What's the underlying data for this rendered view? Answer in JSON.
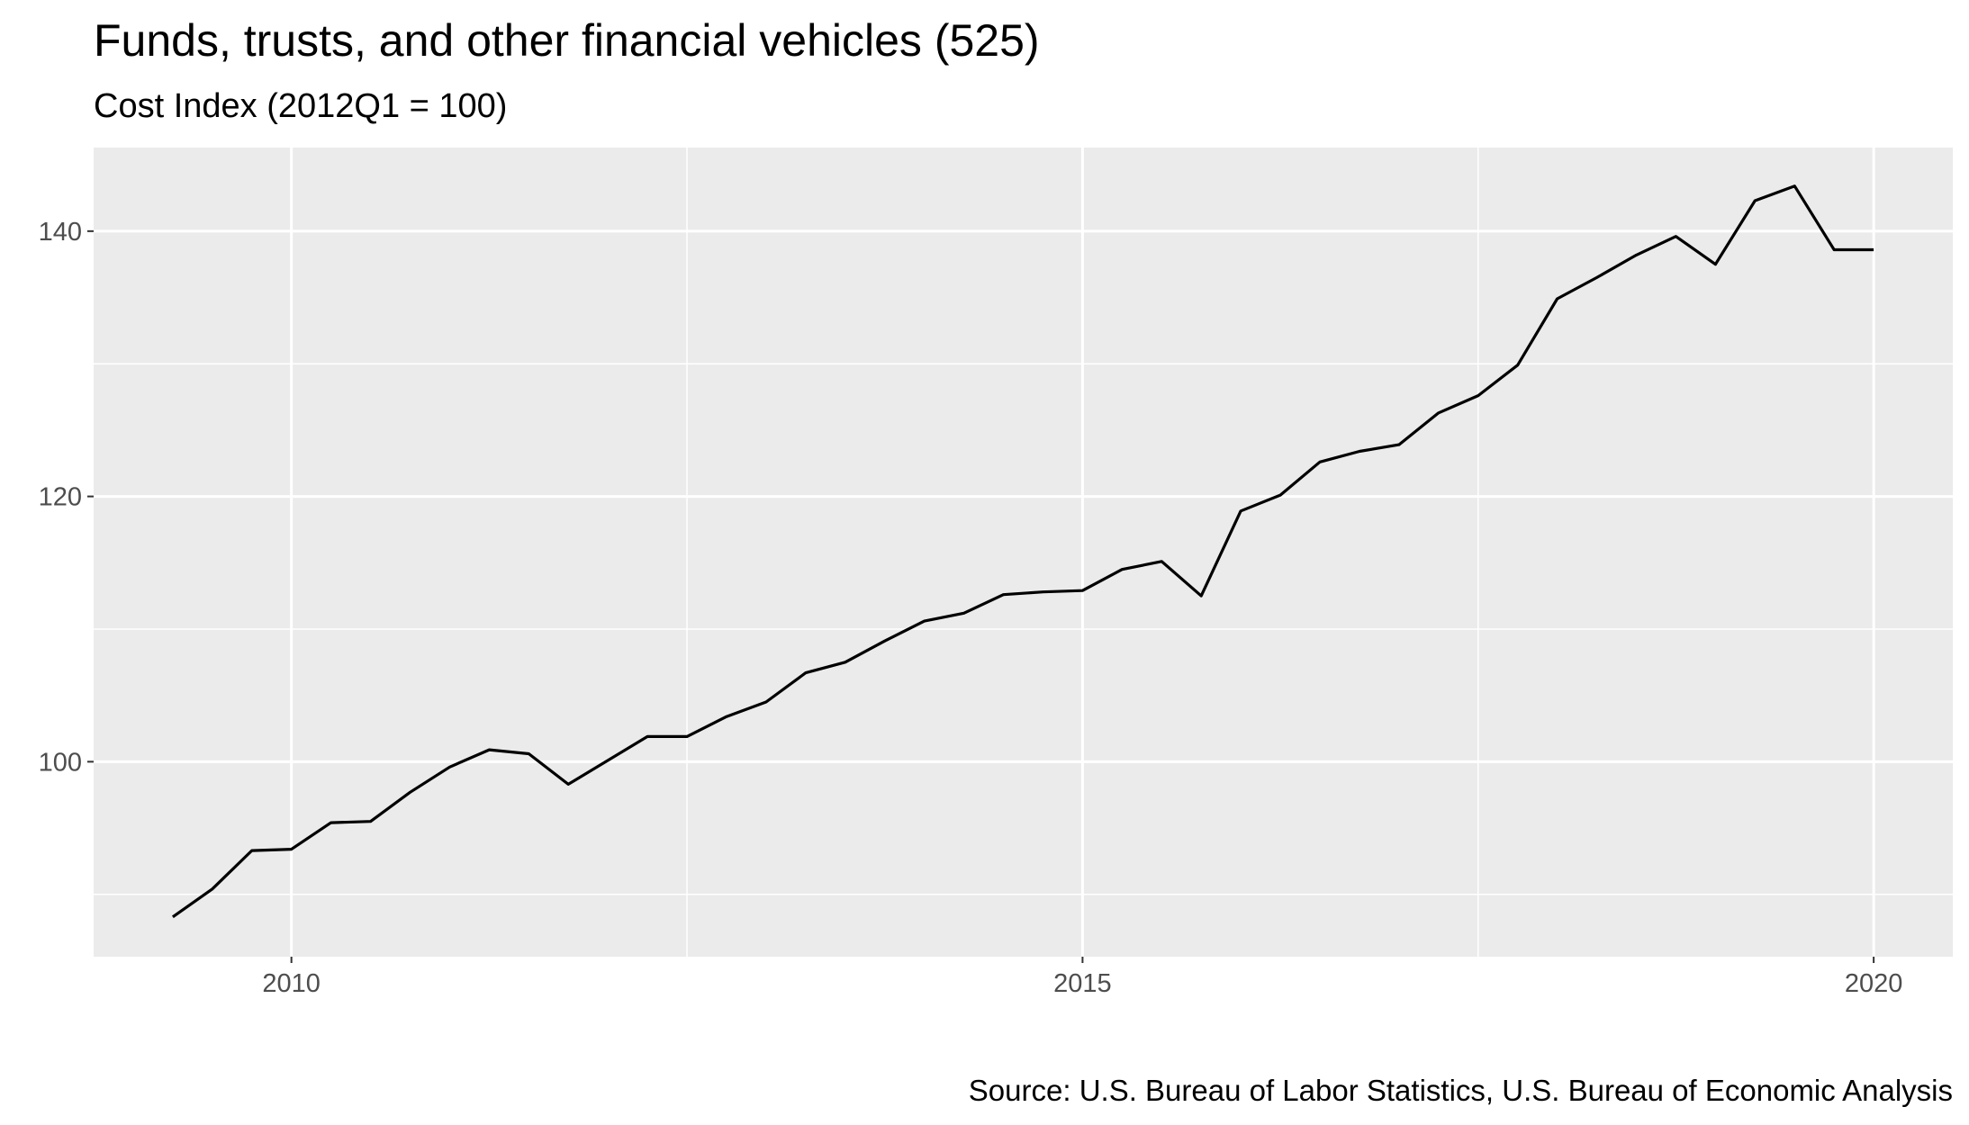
{
  "chart_data": {
    "type": "line",
    "title": "Funds, trusts, and other financial vehicles (525)",
    "subtitle": "Cost Index (2012Q1 = 100)",
    "caption": "Source: U.S. Bureau of Labor Statistics, U.S. Bureau of Economic Analysis",
    "xlabel": "",
    "ylabel": "",
    "x_ticks": [
      2010,
      2015,
      2020
    ],
    "x_tick_labels": [
      "2010",
      "2015",
      "2020"
    ],
    "y_ticks": [
      100,
      120,
      140
    ],
    "y_tick_labels": [
      "100",
      "120",
      "140"
    ],
    "xlim": [
      2008.75,
      2020.5
    ],
    "ylim": [
      85.3,
      146.3
    ],
    "grid": true,
    "legend": "none",
    "colors": {
      "panel": "#ebebeb",
      "grid": "#ffffff",
      "line": "#000000",
      "tick": "#333333"
    },
    "series": [
      {
        "x": [
          2009.25,
          2009.5,
          2009.75,
          2010.0,
          2010.25,
          2010.5,
          2010.75,
          2011.0,
          2011.25,
          2011.5,
          2011.75,
          2012.0,
          2012.25,
          2012.5,
          2012.75,
          2013.0,
          2013.25,
          2013.5,
          2013.75,
          2014.0,
          2014.25,
          2014.5,
          2014.75,
          2015.0,
          2015.25,
          2015.5,
          2015.75,
          2016.0,
          2016.25,
          2016.5,
          2016.75,
          2017.0,
          2017.25,
          2017.5,
          2017.75,
          2018.0,
          2018.25,
          2018.5,
          2018.75,
          2019.0,
          2019.25,
          2019.5,
          2019.75,
          2020.0
        ],
        "values": [
          88.3,
          90.4,
          93.3,
          93.4,
          95.4,
          95.5,
          97.7,
          99.6,
          100.9,
          100.6,
          98.3,
          100.1,
          101.9,
          101.9,
          103.4,
          104.5,
          106.7,
          107.5,
          109.1,
          110.6,
          111.2,
          112.6,
          112.8,
          112.9,
          114.5,
          115.1,
          112.5,
          118.9,
          120.1,
          122.6,
          123.4,
          123.9,
          126.3,
          127.6,
          129.9,
          134.9,
          136.5,
          138.2,
          139.6,
          137.5,
          142.3,
          143.4,
          138.6,
          138.6
        ]
      }
    ]
  }
}
